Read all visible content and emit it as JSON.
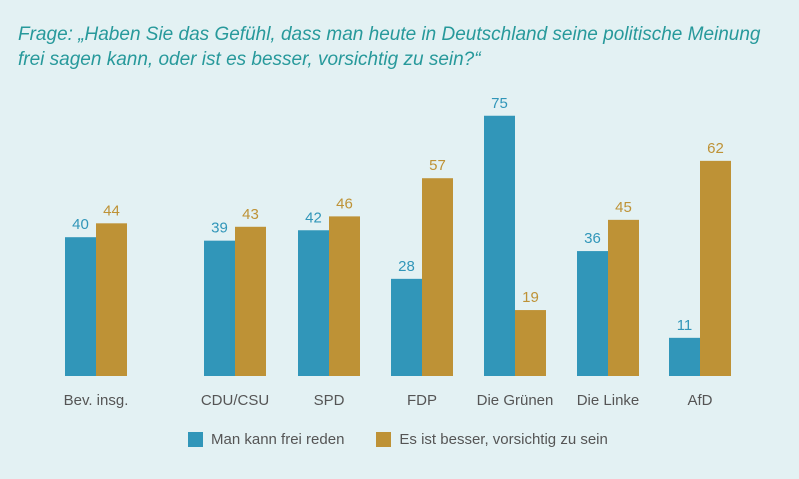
{
  "title": "Frage: „Haben Sie das Gefühl, dass man heute in Deutschland seine politische Meinung frei sagen kann, oder ist es besser, vorsichtig zu sein?“",
  "colors": {
    "series1": "#3196b9",
    "series2": "#be9236",
    "title": "#27999b",
    "label": "#555555"
  },
  "chart_data": {
    "type": "bar",
    "title": "Frage: „Haben Sie das Gefühl, dass man heute in Deutschland seine politische Meinung frei sagen kann, oder ist es besser, vorsichtig zu sein?“",
    "categories": [
      "Bev. insg.",
      "CDU/CSU",
      "SPD",
      "FDP",
      "Die Grünen",
      "Die Linke",
      "AfD"
    ],
    "series": [
      {
        "name": "Man kann frei reden",
        "values": [
          40,
          39,
          42,
          28,
          75,
          36,
          11
        ]
      },
      {
        "name": "Es ist besser, vorsichtig zu sein",
        "values": [
          44,
          43,
          46,
          57,
          19,
          45,
          62
        ]
      }
    ],
    "xlabel": "",
    "ylabel": "",
    "ylim": [
      0,
      75
    ],
    "grid": false,
    "legend": "bottom"
  }
}
